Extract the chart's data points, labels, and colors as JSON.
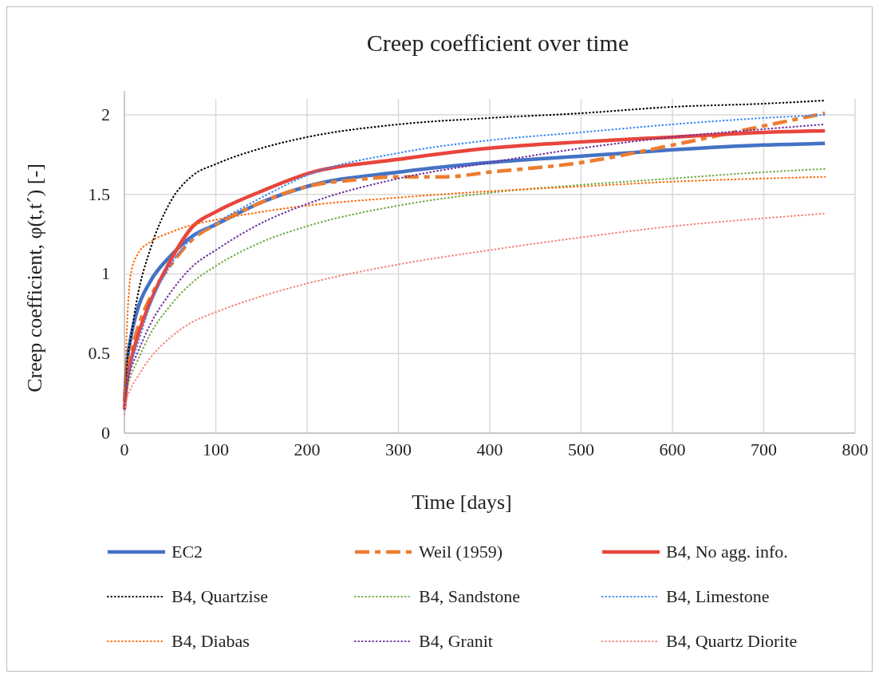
{
  "chart_data": {
    "type": "line",
    "title": "Creep coefficient over time",
    "xlabel": "Time [days]",
    "ylabel": "Creep coefficient, φ(t,t´) [-]",
    "x": [
      0,
      3,
      7,
      14,
      28,
      50,
      75,
      100,
      150,
      200,
      300,
      400,
      500,
      600,
      700,
      767
    ],
    "xlim": [
      0,
      800
    ],
    "xticks": [
      0,
      100,
      200,
      300,
      400,
      500,
      600,
      700,
      800
    ],
    "ylim": [
      0,
      2.1
    ],
    "yticks": [
      0,
      0.5,
      1,
      1.5,
      2
    ],
    "grid": true,
    "legend": "bottom",
    "series": [
      {
        "name": "EC2",
        "color": "#4472c4",
        "line_style": "solid",
        "values": [
          0.2,
          0.45,
          0.6,
          0.77,
          0.95,
          1.11,
          1.24,
          1.31,
          1.45,
          1.55,
          1.64,
          1.7,
          1.74,
          1.78,
          1.81,
          1.82
        ]
      },
      {
        "name": "Weil (1959)",
        "color": "#ed7d31",
        "line_style": "dashed",
        "x": [
          0,
          3,
          7,
          14,
          28,
          50,
          75,
          100,
          150,
          200,
          250,
          300,
          350,
          400,
          500,
          600,
          700,
          767
        ],
        "values": [
          0.2,
          0.38,
          0.5,
          0.65,
          0.85,
          1.05,
          1.22,
          1.31,
          1.45,
          1.55,
          1.59,
          1.61,
          1.61,
          1.64,
          1.7,
          1.81,
          1.93,
          2.01
        ]
      },
      {
        "name": "B4, No agg. info.",
        "color": "#e8453c",
        "line_style": "solid",
        "values": [
          0.15,
          0.33,
          0.45,
          0.6,
          0.82,
          1.08,
          1.3,
          1.39,
          1.52,
          1.63,
          1.72,
          1.79,
          1.83,
          1.86,
          1.89,
          1.9
        ]
      },
      {
        "name": "B4, Quartzise",
        "color": "#000000",
        "line_style": "dotted",
        "values": [
          0.2,
          0.45,
          0.6,
          0.85,
          1.15,
          1.45,
          1.62,
          1.69,
          1.79,
          1.86,
          1.94,
          1.98,
          2.01,
          2.05,
          2.07,
          2.09
        ]
      },
      {
        "name": "B4, Sandstone",
        "color": "#70ad47",
        "line_style": "dotted",
        "values": [
          0.15,
          0.28,
          0.36,
          0.45,
          0.62,
          0.8,
          0.95,
          1.05,
          1.2,
          1.3,
          1.43,
          1.51,
          1.56,
          1.6,
          1.64,
          1.66
        ]
      },
      {
        "name": "B4, Limestone",
        "color": "#3d8af7",
        "line_style": "dotted",
        "values": [
          0.15,
          0.32,
          0.43,
          0.55,
          0.8,
          1.05,
          1.23,
          1.32,
          1.48,
          1.62,
          1.76,
          1.84,
          1.89,
          1.94,
          1.98,
          2.0
        ]
      },
      {
        "name": "B4, Diabas",
        "color": "#ff6600",
        "line_style": "dotted",
        "values": [
          0.2,
          0.7,
          1.0,
          1.12,
          1.2,
          1.26,
          1.31,
          1.34,
          1.39,
          1.43,
          1.48,
          1.52,
          1.55,
          1.58,
          1.6,
          1.61
        ]
      },
      {
        "name": "B4, Granit",
        "color": "#7030a0",
        "line_style": "dotted",
        "values": [
          0.15,
          0.3,
          0.4,
          0.5,
          0.68,
          0.88,
          1.05,
          1.15,
          1.32,
          1.44,
          1.6,
          1.7,
          1.79,
          1.86,
          1.91,
          1.94
        ]
      },
      {
        "name": "B4, Quartz Diorite",
        "color": "#f4877e",
        "line_style": "dotted",
        "values": [
          0.12,
          0.22,
          0.28,
          0.35,
          0.47,
          0.6,
          0.7,
          0.76,
          0.86,
          0.94,
          1.06,
          1.15,
          1.23,
          1.3,
          1.35,
          1.38
        ]
      }
    ]
  }
}
